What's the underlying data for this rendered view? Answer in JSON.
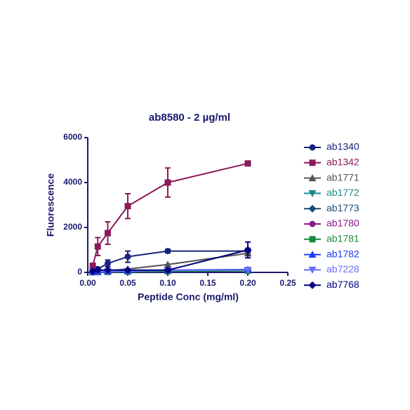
{
  "chart_data": {
    "type": "line",
    "title": "ab8580 - 2 µg/ml",
    "x_label": "Peptide Conc (mg/ml)",
    "y_label": "Fluorescence",
    "x": [
      0.00625,
      0.0125,
      0.025,
      0.05,
      0.1,
      0.2
    ],
    "xlim": [
      0,
      0.25
    ],
    "xticks": [
      {
        "value": 0,
        "label": "0.00"
      },
      {
        "value": 0.05,
        "label": "0.05"
      },
      {
        "value": 0.1,
        "label": "0.10"
      },
      {
        "value": 0.15,
        "label": "0.15"
      },
      {
        "value": 0.2,
        "label": "0.20"
      },
      {
        "value": 0.25,
        "label": "0.25"
      }
    ],
    "ylim": [
      0,
      6000
    ],
    "yticks": [
      0,
      2000,
      4000,
      6000
    ],
    "legend": "right",
    "series": [
      {
        "name": "ab1340",
        "color": "#1a237e",
        "marker": "circle",
        "values": [
          100,
          150,
          400,
          700,
          950,
          950
        ],
        "errors": [
          50,
          50,
          150,
          250,
          80,
          120
        ]
      },
      {
        "name": "ab1342",
        "color": "#8b1a5a",
        "marker": "square",
        "values": [
          300,
          1150,
          1750,
          2950,
          4000,
          4850
        ],
        "errors": [
          100,
          400,
          500,
          550,
          650,
          100
        ]
      },
      {
        "name": "ab1771",
        "color": "#555555",
        "marker": "triangle-up",
        "values": [
          20,
          50,
          80,
          150,
          350,
          850
        ]
      },
      {
        "name": "ab1772",
        "color": "#1a8a8a",
        "marker": "triangle-down",
        "values": [
          10,
          20,
          30,
          40,
          60,
          80
        ]
      },
      {
        "name": "ab1773",
        "color": "#1a4a7a",
        "marker": "diamond",
        "values": [
          15,
          25,
          35,
          50,
          70,
          90
        ]
      },
      {
        "name": "ab1780",
        "color": "#8b1a8b",
        "marker": "circle",
        "values": [
          20,
          30,
          40,
          60,
          80,
          100
        ]
      },
      {
        "name": "ab1781",
        "color": "#1a8a3a",
        "marker": "square",
        "values": [
          10,
          15,
          25,
          35,
          50,
          70
        ]
      },
      {
        "name": "ab1782",
        "color": "#1a3aff",
        "marker": "triangle-up",
        "values": [
          25,
          35,
          50,
          70,
          100,
          130
        ]
      },
      {
        "name": "ab7228",
        "color": "#6a6aff",
        "marker": "triangle-down",
        "values": [
          15,
          25,
          40,
          60,
          90,
          110
        ]
      },
      {
        "name": "ab7768",
        "color": "#000080",
        "marker": "diamond",
        "values": [
          50,
          100,
          100,
          100,
          100,
          1000
        ],
        "errors": [
          30,
          40,
          40,
          40,
          40,
          350
        ]
      }
    ]
  }
}
